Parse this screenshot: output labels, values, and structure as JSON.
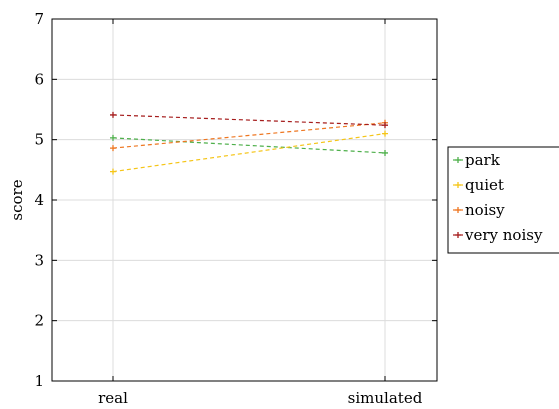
{
  "chart_data": {
    "type": "line",
    "title": "",
    "xlabel": "",
    "ylabel": "score",
    "categories": [
      "real",
      "simulated"
    ],
    "ylim": [
      1,
      7
    ],
    "yticks": [
      1,
      2,
      3,
      4,
      5,
      6,
      7
    ],
    "grid": true,
    "legend_position": "right",
    "series": [
      {
        "name": "park",
        "values": [
          5.03,
          4.78
        ],
        "color": "#4daf4a"
      },
      {
        "name": "quiet",
        "values": [
          4.47,
          5.1
        ],
        "color": "#f5c518"
      },
      {
        "name": "noisy",
        "values": [
          4.86,
          5.28
        ],
        "color": "#ee7620"
      },
      {
        "name": "very noisy",
        "values": [
          5.41,
          5.24
        ],
        "color": "#a51c1c"
      }
    ]
  }
}
